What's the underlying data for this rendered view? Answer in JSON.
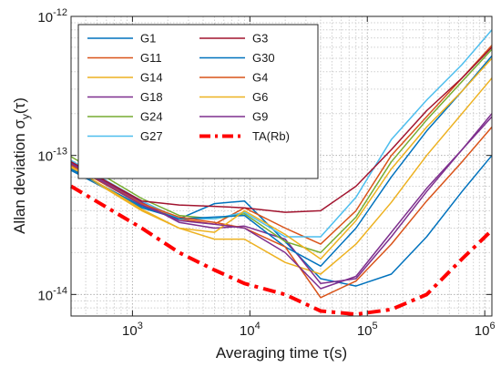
{
  "chart_data": {
    "type": "line",
    "xscale": "log",
    "yscale": "log",
    "xlim": [
      300,
      1150000
    ],
    "ylim": [
      7e-15,
      1e-12
    ],
    "grid": true,
    "legend_placement": "top-left",
    "xlabel_text": "Averaging time τ(s)",
    "ylabel_main": "Allan deviation σ",
    "ylabel_sub": "y",
    "ylabel_tail": "(τ)",
    "x_ticks": [
      {
        "value": 1000,
        "base": "10",
        "exp": "3"
      },
      {
        "value": 10000,
        "base": "10",
        "exp": "4"
      },
      {
        "value": 100000,
        "base": "10",
        "exp": "5"
      },
      {
        "value": 1000000,
        "base": "10",
        "exp": "6"
      }
    ],
    "y_ticks": [
      {
        "value": 1e-14,
        "base": "10",
        "exp": "-14"
      },
      {
        "value": 1e-13,
        "base": "10",
        "exp": "-13"
      },
      {
        "value": 1e-12,
        "base": "10",
        "exp": "-12"
      }
    ],
    "series": [
      {
        "name": "G1",
        "color": "#0072BD",
        "dash": "solid",
        "x": [
          300,
          1200,
          2500,
          5000,
          9000,
          20000,
          40000,
          80000,
          160000,
          320000,
          640000,
          1150000
        ],
        "y": [
          7.8e-14,
          4.2e-14,
          3.5e-14,
          4.5e-14,
          4.7e-14,
          2.4e-14,
          1.3e-14,
          1.15e-14,
          1.4e-14,
          2.6e-14,
          5.5e-14,
          1e-13
        ]
      },
      {
        "name": "G11",
        "color": "#D95319",
        "dash": "solid",
        "x": [
          300,
          1200,
          2500,
          5000,
          9000,
          20000,
          40000,
          80000,
          160000,
          320000,
          640000,
          1150000
        ],
        "y": [
          8.5e-14,
          4.4e-14,
          3.5e-14,
          3.2e-14,
          4.2e-14,
          3e-14,
          2.3e-14,
          4e-14,
          1e-13,
          1.9e-13,
          3.6e-13,
          6.2e-13
        ]
      },
      {
        "name": "G14",
        "color": "#EDB120",
        "dash": "solid",
        "x": [
          300,
          1200,
          2500,
          5000,
          9000,
          20000,
          40000,
          80000,
          160000,
          320000,
          640000,
          1150000
        ],
        "y": [
          8.2e-14,
          4e-14,
          3e-14,
          2.5e-14,
          2.5e-14,
          1.7e-14,
          1.4e-14,
          2.3e-14,
          4.6e-14,
          1e-13,
          2e-13,
          3.6e-13
        ]
      },
      {
        "name": "G18",
        "color": "#7E2F8E",
        "dash": "solid",
        "x": [
          300,
          1200,
          2500,
          5000,
          9000,
          20000,
          40000,
          80000,
          160000,
          320000,
          640000,
          1150000
        ],
        "y": [
          8.8e-14,
          4.6e-14,
          3.3e-14,
          3e-14,
          3.1e-14,
          2.5e-14,
          1.2e-14,
          1.3e-14,
          2.6e-14,
          5.5e-14,
          1.1e-13,
          2e-13
        ]
      },
      {
        "name": "G24",
        "color": "#77AC30",
        "dash": "solid",
        "x": [
          300,
          1200,
          2500,
          5000,
          9000,
          20000,
          40000,
          80000,
          160000,
          320000,
          640000,
          1150000
        ],
        "y": [
          9.8e-14,
          4.9e-14,
          3.7e-14,
          3.5e-14,
          3.8e-14,
          2.4e-14,
          2e-14,
          3.6e-14,
          9e-14,
          1.8e-13,
          3.4e-13,
          5.8e-13
        ]
      },
      {
        "name": "G27",
        "color": "#4DBEEE",
        "dash": "solid",
        "x": [
          300,
          1200,
          2500,
          5000,
          9000,
          20000,
          40000,
          80000,
          160000,
          320000,
          640000,
          1150000
        ],
        "y": [
          9.2e-14,
          4.7e-14,
          3.5e-14,
          3.5e-14,
          3.9e-14,
          2.6e-14,
          2.6e-14,
          5e-14,
          1.3e-13,
          2.5e-13,
          4.5e-13,
          8e-13
        ]
      },
      {
        "name": "G3",
        "color": "#A2142F",
        "dash": "solid",
        "x": [
          300,
          1200,
          2500,
          5000,
          9000,
          20000,
          40000,
          80000,
          160000,
          320000,
          640000,
          1150000
        ],
        "y": [
          9e-14,
          4.7e-14,
          4.4e-14,
          4.3e-14,
          4.2e-14,
          3.9e-14,
          4e-14,
          6e-14,
          1.1e-13,
          2.1e-13,
          3.6e-13,
          6e-13
        ]
      },
      {
        "name": "G30",
        "color": "#0072BD",
        "dash": "solid",
        "x": [
          300,
          1200,
          2500,
          5000,
          9000,
          20000,
          40000,
          80000,
          160000,
          320000,
          640000,
          1150000
        ],
        "y": [
          8e-14,
          4.3e-14,
          3.5e-14,
          3.6e-14,
          3.7e-14,
          2.2e-14,
          1.6e-14,
          3e-14,
          7e-14,
          1.5e-13,
          2.9e-13,
          5.2e-13
        ]
      },
      {
        "name": "G4",
        "color": "#D95319",
        "dash": "solid",
        "x": [
          300,
          1200,
          2500,
          5000,
          9000,
          20000,
          40000,
          80000,
          160000,
          320000,
          640000,
          1150000
        ],
        "y": [
          8.6e-14,
          4.5e-14,
          3.6e-14,
          3.3e-14,
          3e-14,
          2.2e-14,
          9.5e-15,
          1.25e-14,
          2.3e-14,
          4.7e-14,
          9e-14,
          1.6e-13
        ]
      },
      {
        "name": "G6",
        "color": "#EDB120",
        "dash": "solid",
        "x": [
          300,
          1200,
          2500,
          5000,
          9000,
          20000,
          40000,
          80000,
          160000,
          320000,
          640000,
          1150000
        ],
        "y": [
          8.3e-14,
          4.1e-14,
          3e-14,
          2.8e-14,
          4e-14,
          2.7e-14,
          1.8e-14,
          3.4e-14,
          8e-14,
          1.6e-13,
          2.9e-13,
          5e-13
        ]
      },
      {
        "name": "G9",
        "color": "#7E2F8E",
        "dash": "solid",
        "x": [
          300,
          1200,
          2500,
          5000,
          9000,
          20000,
          40000,
          80000,
          160000,
          320000,
          640000,
          1150000
        ],
        "y": [
          8.7e-14,
          4.4e-14,
          3.4e-14,
          3.2e-14,
          3e-14,
          2e-14,
          1.1e-14,
          1.35e-14,
          2.8e-14,
          5.8e-14,
          1.1e-13,
          1.9e-13
        ]
      },
      {
        "name": "TA(Rb)",
        "color": "#FF0000",
        "dash": "dashdot",
        "x": [
          300,
          1200,
          2500,
          5000,
          9000,
          20000,
          40000,
          80000,
          160000,
          320000,
          640000,
          1150000
        ],
        "y": [
          6e-14,
          3e-14,
          2e-14,
          1.5e-14,
          1.2e-14,
          1e-14,
          7.6e-15,
          7.2e-15,
          7.8e-15,
          1e-14,
          1.8e-14,
          2.9e-14
        ]
      }
    ]
  }
}
